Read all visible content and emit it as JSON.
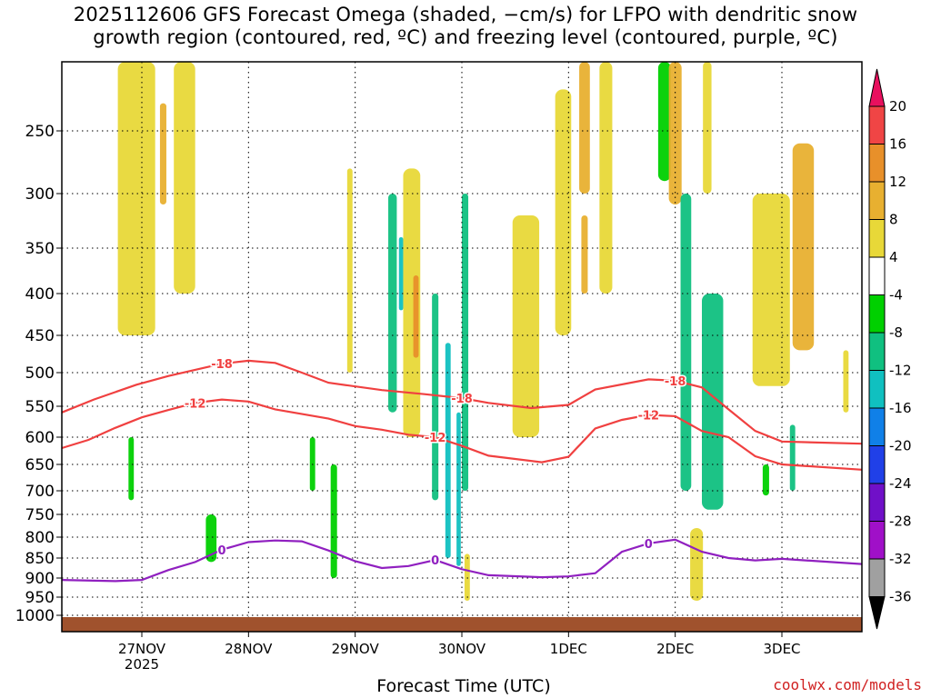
{
  "title": {
    "line1": "2025112606 GFS Forecast Omega (shaded, −cm/s) for LFPO with dendritic snow",
    "line2": "growth region (contoured, red, ºC) and freezing level (contoured, purple, ºC)"
  },
  "xlabel": "Forecast Time (UTC)",
  "credit": "coolwx.com/models",
  "chart_data": {
    "type": "heatmap",
    "x_ticks": [
      {
        "label": "27NOV",
        "sub": "2025",
        "t": 0.75
      },
      {
        "label": "28NOV",
        "t": 1.75
      },
      {
        "label": "29NOV",
        "t": 2.75
      },
      {
        "label": "30NOV",
        "t": 3.75
      },
      {
        "label": "1DEC",
        "t": 4.75
      },
      {
        "label": "2DEC",
        "t": 5.75
      },
      {
        "label": "3DEC",
        "t": 6.75
      }
    ],
    "x_range_days": [
      0,
      7.5
    ],
    "y_levels": [
      250,
      300,
      350,
      400,
      450,
      500,
      550,
      600,
      650,
      700,
      750,
      800,
      850,
      900,
      950,
      1000
    ],
    "y_range_hpa": [
      200,
      1000
    ],
    "grid": true,
    "colorbar": {
      "levels": [
        20,
        16,
        12,
        8,
        4,
        -4,
        -8,
        -12,
        -16,
        -20,
        -24,
        -28,
        -32,
        -36
      ],
      "colors": [
        "#e8105e",
        "#f04545",
        "#e8902a",
        "#e8b030",
        "#e8d838",
        "#ffffff",
        "#00d000",
        "#10c080",
        "#10c0c0",
        "#1080e8",
        "#2040e8",
        "#7010c8",
        "#a010c8",
        "#a0a0a0",
        "#000000"
      ]
    },
    "contours": [
      {
        "value": "-18",
        "color": "#f04040",
        "points": [
          [
            0,
            560
          ],
          [
            0.3,
            540
          ],
          [
            0.7,
            518
          ],
          [
            1.0,
            505
          ],
          [
            1.5,
            488
          ],
          [
            1.75,
            484
          ],
          [
            2.0,
            487
          ],
          [
            2.25,
            500
          ],
          [
            2.5,
            515
          ],
          [
            3.0,
            526
          ],
          [
            3.4,
            532
          ],
          [
            3.75,
            538
          ],
          [
            4.0,
            545
          ],
          [
            4.4,
            553
          ],
          [
            4.75,
            548
          ],
          [
            5.0,
            525
          ],
          [
            5.5,
            510
          ],
          [
            5.75,
            512
          ],
          [
            6.0,
            522
          ],
          [
            6.25,
            555
          ],
          [
            6.5,
            590
          ],
          [
            6.75,
            608
          ],
          [
            7.5,
            612
          ]
        ]
      },
      {
        "value": "-12",
        "color": "#f04040",
        "points": [
          [
            0,
            620
          ],
          [
            0.25,
            605
          ],
          [
            0.5,
            585
          ],
          [
            0.75,
            568
          ],
          [
            1.0,
            556
          ],
          [
            1.25,
            545
          ],
          [
            1.5,
            540
          ],
          [
            1.75,
            543
          ],
          [
            2.0,
            555
          ],
          [
            2.5,
            570
          ],
          [
            2.75,
            582
          ],
          [
            3.0,
            588
          ],
          [
            3.25,
            596
          ],
          [
            3.5,
            600
          ],
          [
            3.75,
            616
          ],
          [
            4.0,
            634
          ],
          [
            4.5,
            646
          ],
          [
            4.75,
            636
          ],
          [
            5.0,
            586
          ],
          [
            5.25,
            572
          ],
          [
            5.5,
            564
          ],
          [
            5.75,
            566
          ],
          [
            6.0,
            590
          ],
          [
            6.25,
            600
          ],
          [
            6.5,
            635
          ],
          [
            6.75,
            650
          ],
          [
            7.5,
            660
          ]
        ]
      },
      {
        "value": "0",
        "color": "#9020c0",
        "points": [
          [
            0,
            905
          ],
          [
            0.5,
            908
          ],
          [
            0.75,
            905
          ],
          [
            1.0,
            880
          ],
          [
            1.25,
            860
          ],
          [
            1.5,
            830
          ],
          [
            1.75,
            812
          ],
          [
            2.0,
            808
          ],
          [
            2.25,
            810
          ],
          [
            2.5,
            832
          ],
          [
            2.75,
            858
          ],
          [
            3.0,
            875
          ],
          [
            3.25,
            870
          ],
          [
            3.5,
            855
          ],
          [
            3.75,
            878
          ],
          [
            4.0,
            893
          ],
          [
            4.5,
            898
          ],
          [
            4.75,
            896
          ],
          [
            5.0,
            888
          ],
          [
            5.25,
            835
          ],
          [
            5.5,
            815
          ],
          [
            5.75,
            806
          ],
          [
            6.0,
            835
          ],
          [
            6.25,
            850
          ],
          [
            6.5,
            856
          ],
          [
            6.75,
            852
          ],
          [
            7.5,
            865
          ]
        ]
      }
    ],
    "omega_patches": [
      {
        "t": 0.7,
        "p1": 200,
        "p2": 450,
        "w": 0.35,
        "v": 6
      },
      {
        "t": 0.95,
        "p1": 230,
        "p2": 310,
        "w": 0.06,
        "v": 10
      },
      {
        "t": 1.15,
        "p1": 200,
        "p2": 400,
        "w": 0.2,
        "v": 5
      },
      {
        "t": 0.65,
        "p1": 600,
        "p2": 720,
        "w": 0.05,
        "v": -6
      },
      {
        "t": 1.4,
        "p1": 750,
        "p2": 860,
        "w": 0.1,
        "v": -7
      },
      {
        "t": 2.35,
        "p1": 600,
        "p2": 700,
        "w": 0.05,
        "v": -6
      },
      {
        "t": 2.55,
        "p1": 650,
        "p2": 900,
        "w": 0.06,
        "v": -8
      },
      {
        "t": 2.7,
        "p1": 280,
        "p2": 500,
        "w": 0.05,
        "v": 5
      },
      {
        "t": 3.1,
        "p1": 300,
        "p2": 560,
        "w": 0.08,
        "v": -9
      },
      {
        "t": 3.18,
        "p1": 340,
        "p2": 420,
        "w": 0.04,
        "v": -14
      },
      {
        "t": 3.28,
        "p1": 280,
        "p2": 600,
        "w": 0.16,
        "v": 6
      },
      {
        "t": 3.32,
        "p1": 380,
        "p2": 480,
        "w": 0.05,
        "v": 14
      },
      {
        "t": 3.5,
        "p1": 400,
        "p2": 720,
        "w": 0.06,
        "v": -9
      },
      {
        "t": 3.62,
        "p1": 460,
        "p2": 850,
        "w": 0.05,
        "v": -14
      },
      {
        "t": 3.78,
        "p1": 300,
        "p2": 700,
        "w": 0.06,
        "v": -10
      },
      {
        "t": 3.72,
        "p1": 560,
        "p2": 870,
        "w": 0.04,
        "v": -16
      },
      {
        "t": 3.8,
        "p1": 840,
        "p2": 960,
        "w": 0.05,
        "v": 6
      },
      {
        "t": 4.35,
        "p1": 320,
        "p2": 600,
        "w": 0.25,
        "v": 5
      },
      {
        "t": 4.7,
        "p1": 220,
        "p2": 450,
        "w": 0.15,
        "v": 6
      },
      {
        "t": 4.9,
        "p1": 200,
        "p2": 300,
        "w": 0.1,
        "v": 10
      },
      {
        "t": 4.9,
        "p1": 320,
        "p2": 400,
        "w": 0.06,
        "v": 10
      },
      {
        "t": 5.1,
        "p1": 200,
        "p2": 400,
        "w": 0.12,
        "v": 5
      },
      {
        "t": 5.65,
        "p1": 200,
        "p2": 290,
        "w": 0.12,
        "v": -8
      },
      {
        "t": 5.75,
        "p1": 200,
        "p2": 310,
        "w": 0.12,
        "v": 10
      },
      {
        "t": 5.85,
        "p1": 300,
        "p2": 700,
        "w": 0.1,
        "v": -9
      },
      {
        "t": 6.1,
        "p1": 400,
        "p2": 740,
        "w": 0.2,
        "v": -11
      },
      {
        "t": 5.95,
        "p1": 780,
        "p2": 960,
        "w": 0.12,
        "v": 7
      },
      {
        "t": 6.05,
        "p1": 200,
        "p2": 300,
        "w": 0.08,
        "v": 4
      },
      {
        "t": 6.65,
        "p1": 300,
        "p2": 520,
        "w": 0.35,
        "v": 6
      },
      {
        "t": 6.95,
        "p1": 260,
        "p2": 470,
        "w": 0.2,
        "v": 10
      },
      {
        "t": 6.6,
        "p1": 650,
        "p2": 710,
        "w": 0.06,
        "v": -8
      },
      {
        "t": 6.85,
        "p1": 580,
        "p2": 700,
        "w": 0.05,
        "v": -12
      },
      {
        "t": 7.35,
        "p1": 470,
        "p2": 560,
        "w": 0.05,
        "v": 5
      }
    ]
  }
}
